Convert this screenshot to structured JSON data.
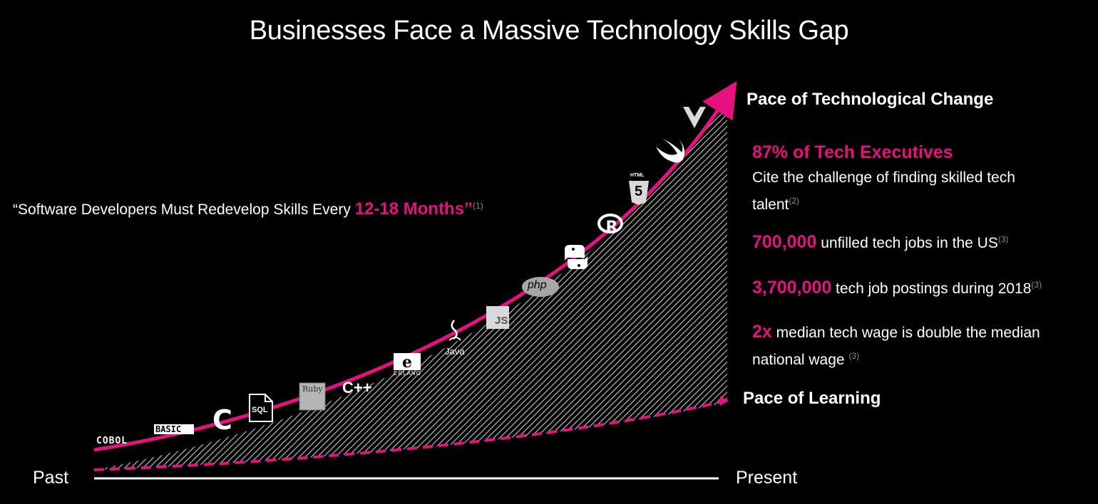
{
  "title": "Businesses Face a Massive Technology Skills Gap",
  "quote": {
    "prefix": "“Software Developers Must Redevelop Skills Every ",
    "highlight": "12-18 Months”",
    "ref": "(1)"
  },
  "curves": {
    "change_label": "Pace of Technological Change",
    "learning_label": "Pace of Learning"
  },
  "stats": {
    "exec_heading": "87% of Tech Executives",
    "exec_text": "Cite the challenge of finding skilled tech talent",
    "exec_ref": "(2)",
    "jobs_number": "700,000",
    "jobs_text": " unfilled tech jobs in the US",
    "jobs_ref": "(3)",
    "postings_number": "3,700,000",
    "postings_text": " tech job postings during 2018",
    "postings_ref": "(3)",
    "wage_number": "2x",
    "wage_text": " median tech wage is double the median national wage ",
    "wage_ref": "(3)"
  },
  "axis": {
    "start": "Past",
    "end": "Present"
  },
  "logos": {
    "cobol": "COBOL",
    "basic": "BASIC",
    "c": "C",
    "sql": "SQL",
    "ruby": "Ruby",
    "cpp": "C++",
    "erlang": "ERLANG",
    "java": "Java",
    "js": "JS",
    "php": "php",
    "html": "HTML",
    "html_num": "5"
  },
  "colors": {
    "accent": "#e5117f",
    "background": "#000000",
    "text": "#ffffff"
  },
  "icons": [
    "cobol-logo",
    "basic-logo",
    "c-logo",
    "sql-file-icon",
    "ruby-logo",
    "cpp-logo",
    "erlang-logo",
    "java-icon",
    "js-logo",
    "php-logo",
    "python-icon",
    "r-logo",
    "html5-logo",
    "swift-icon",
    "vue-icon"
  ]
}
